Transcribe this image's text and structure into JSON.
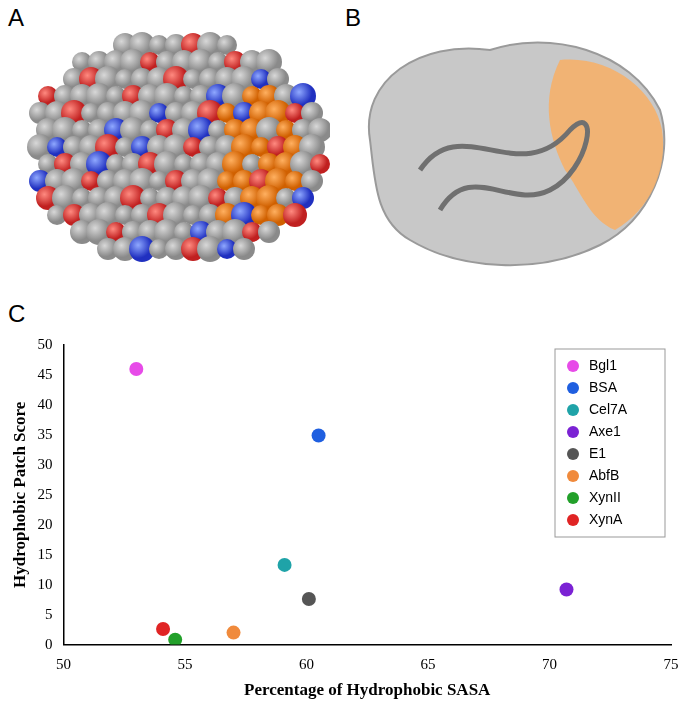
{
  "panel_labels": [
    "A",
    "B",
    "C"
  ],
  "chart_data": {
    "type": "scatter",
    "x_label": "Percentage of Hydrophobic SASA",
    "y_label": "Hydrophobic Patch Score",
    "xlim": [
      50,
      75
    ],
    "xticks": [
      50,
      55,
      60,
      65,
      70,
      75
    ],
    "ylim": [
      0,
      50
    ],
    "yticks": [
      0,
      5,
      10,
      15,
      20,
      25,
      30,
      35,
      40,
      45,
      50
    ],
    "grid": false,
    "legend": "upper right",
    "series": [
      {
        "name": "Bgl1",
        "color": "#e74be8",
        "x": [
          53.0
        ],
        "values": [
          46.0
        ]
      },
      {
        "name": "BSA",
        "color": "#1f5fe0",
        "x": [
          60.5
        ],
        "values": [
          34.9
        ]
      },
      {
        "name": "Cel7A",
        "color": "#1fa3a8",
        "x": [
          59.1
        ],
        "values": [
          13.3
        ]
      },
      {
        "name": "Axe1",
        "color": "#7b22d4",
        "x": [
          70.7
        ],
        "values": [
          9.2
        ]
      },
      {
        "name": "E1",
        "color": "#555555",
        "x": [
          60.1
        ],
        "values": [
          7.6
        ]
      },
      {
        "name": "AbfB",
        "color": "#f08a3c",
        "x": [
          57.0
        ],
        "values": [
          2.0
        ]
      },
      {
        "name": "XynII",
        "color": "#22a02a",
        "x": [
          54.6
        ],
        "values": [
          0.8
        ]
      },
      {
        "name": "XynA",
        "color": "#e02424",
        "x": [
          54.1
        ],
        "values": [
          2.6
        ]
      }
    ]
  }
}
